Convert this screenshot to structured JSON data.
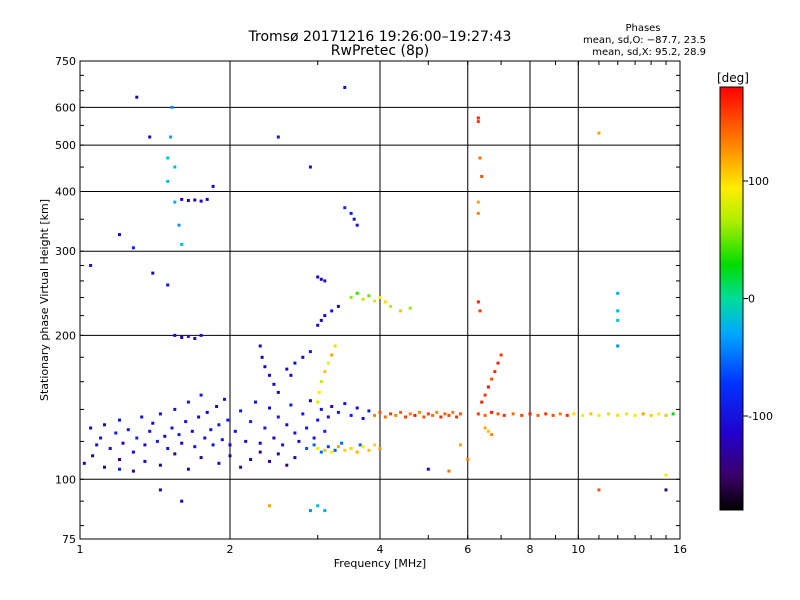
{
  "header": {
    "title_line1": "Tromsø 20171216 19:26:00–19:27:43",
    "title_line2": "RwPretec (8p)",
    "phases_title": "Phases",
    "phases_o": "mean, sd,O: −87.7, 23.5",
    "phases_x": "mean, sd,X:  95.2, 28.9"
  },
  "colorbar": {
    "unit_label": "[deg]",
    "ticks": [
      "100",
      "0",
      "-100"
    ],
    "tick_values": [
      100,
      0,
      -100
    ],
    "range": [
      -180,
      180
    ]
  },
  "chart_data": {
    "type": "scatter",
    "xlabel": "Frequency [MHz]",
    "ylabel": "Stationary phase Virtual Height [km]",
    "x_scale": "log",
    "y_scale": "log",
    "xlim": [
      1,
      16
    ],
    "ylim": [
      75,
      750
    ],
    "x_ticks": [
      1,
      2,
      4,
      6,
      8,
      10,
      16
    ],
    "x_tick_labels": [
      "1",
      "2",
      "4",
      "6",
      "8",
      "10",
      "16"
    ],
    "y_ticks": [
      75,
      100,
      200,
      300,
      400,
      500,
      600,
      750
    ],
    "y_tick_labels": [
      "75",
      "100",
      "200",
      "300",
      "400",
      "500",
      "600",
      "750"
    ],
    "grid": true,
    "points": [
      [
        1.05,
        128,
        -110
      ],
      [
        1.08,
        118,
        -100
      ],
      [
        1.1,
        122,
        -95
      ],
      [
        1.12,
        130,
        -115
      ],
      [
        1.15,
        116,
        -105
      ],
      [
        1.18,
        125,
        -90
      ],
      [
        1.2,
        133,
        -100
      ],
      [
        1.22,
        119,
        -120
      ],
      [
        1.25,
        127,
        -95
      ],
      [
        1.28,
        114,
        -110
      ],
      [
        1.3,
        122,
        -85
      ],
      [
        1.33,
        135,
        -100
      ],
      [
        1.35,
        118,
        -105
      ],
      [
        1.38,
        126,
        -95
      ],
      [
        1.4,
        131,
        -115
      ],
      [
        1.43,
        120,
        -90
      ],
      [
        1.45,
        137,
        -100
      ],
      [
        1.48,
        123,
        -110
      ],
      [
        1.5,
        116,
        -95
      ],
      [
        1.53,
        128,
        -100
      ],
      [
        1.55,
        140,
        -105
      ],
      [
        1.58,
        124,
        -90
      ],
      [
        1.6,
        119,
        -115
      ],
      [
        1.63,
        132,
        -100
      ],
      [
        1.65,
        145,
        -95
      ],
      [
        1.68,
        126,
        -110
      ],
      [
        1.7,
        117,
        -100
      ],
      [
        1.73,
        135,
        -105
      ],
      [
        1.75,
        150,
        -90
      ],
      [
        1.78,
        122,
        -100
      ],
      [
        1.8,
        138,
        -115
      ],
      [
        1.83,
        127,
        -95
      ],
      [
        1.85,
        118,
        -100
      ],
      [
        1.88,
        142,
        -110
      ],
      [
        1.9,
        130,
        -90
      ],
      [
        1.93,
        121,
        -100
      ],
      [
        1.95,
        147,
        -105
      ],
      [
        1.98,
        133,
        -95
      ],
      [
        2.0,
        118,
        -110
      ],
      [
        2.05,
        126,
        -100
      ],
      [
        2.1,
        139,
        -95
      ],
      [
        2.15,
        120,
        -105
      ],
      [
        2.2,
        132,
        -90
      ],
      [
        2.25,
        145,
        -100
      ],
      [
        2.3,
        119,
        -115
      ],
      [
        2.35,
        128,
        -95
      ],
      [
        2.4,
        141,
        -100
      ],
      [
        2.45,
        122,
        -110
      ],
      [
        2.5,
        135,
        -90
      ],
      [
        2.55,
        118,
        -100
      ],
      [
        2.6,
        130,
        -105
      ],
      [
        2.65,
        143,
        -95
      ],
      [
        2.7,
        125,
        -100
      ],
      [
        2.75,
        120,
        -110
      ],
      [
        2.8,
        137,
        -90
      ],
      [
        2.85,
        128,
        -100
      ],
      [
        2.9,
        146,
        -115
      ],
      [
        2.95,
        122,
        -95
      ],
      [
        3.0,
        133,
        -100
      ],
      [
        3.05,
        140,
        -105
      ],
      [
        3.1,
        126,
        -90
      ],
      [
        3.15,
        135,
        -100
      ],
      [
        3.2,
        142,
        -110
      ],
      [
        3.3,
        138,
        -95
      ],
      [
        3.4,
        144,
        -100
      ],
      [
        3.5,
        136,
        -90
      ],
      [
        3.6,
        141,
        -105
      ],
      [
        3.7,
        134,
        -100
      ],
      [
        3.8,
        139,
        -95
      ],
      [
        1.02,
        108,
        -130
      ],
      [
        1.06,
        112,
        -140
      ],
      [
        1.12,
        106,
        -125
      ],
      [
        1.2,
        110,
        -135
      ],
      [
        1.28,
        104,
        -145
      ],
      [
        1.35,
        109,
        -120
      ],
      [
        1.45,
        107,
        -130
      ],
      [
        1.55,
        113,
        -140
      ],
      [
        1.65,
        105,
        -125
      ],
      [
        1.75,
        111,
        -135
      ],
      [
        1.9,
        108,
        -120
      ],
      [
        2.0,
        112,
        -130
      ],
      [
        2.1,
        106,
        -140
      ],
      [
        2.2,
        110,
        -125
      ],
      [
        2.3,
        114,
        -135
      ],
      [
        2.4,
        109,
        -120
      ],
      [
        2.5,
        113,
        -130
      ],
      [
        2.6,
        107,
        -140
      ],
      [
        2.7,
        111,
        -125
      ],
      [
        2.85,
        116,
        -60
      ],
      [
        2.95,
        118,
        -55
      ],
      [
        3.05,
        114,
        -50
      ],
      [
        3.15,
        117,
        -65
      ],
      [
        3.25,
        115,
        -58
      ],
      [
        3.35,
        119,
        -52
      ],
      [
        3.5,
        116,
        -62
      ],
      [
        3.65,
        118,
        -55
      ],
      [
        3.0,
        116,
        90
      ],
      [
        3.1,
        115,
        110
      ],
      [
        3.2,
        114,
        95
      ],
      [
        3.3,
        117,
        120
      ],
      [
        3.4,
        115,
        105
      ],
      [
        3.5,
        116,
        100
      ],
      [
        3.6,
        114,
        115
      ],
      [
        3.7,
        117,
        90
      ],
      [
        3.8,
        115,
        110
      ],
      [
        3.9,
        118,
        100
      ],
      [
        4.0,
        116,
        125
      ],
      [
        3.0,
        145,
        80
      ],
      [
        3.02,
        152,
        95
      ],
      [
        3.05,
        160,
        70
      ],
      [
        3.1,
        168,
        110
      ],
      [
        3.15,
        175,
        90
      ],
      [
        3.2,
        182,
        120
      ],
      [
        3.25,
        190,
        100
      ],
      [
        3.9,
        136,
        130
      ],
      [
        4.0,
        138,
        150
      ],
      [
        4.1,
        135,
        140
      ],
      [
        4.2,
        137,
        160
      ],
      [
        4.3,
        136,
        130
      ],
      [
        4.4,
        138,
        145
      ],
      [
        4.5,
        135,
        155
      ],
      [
        4.6,
        137,
        135
      ],
      [
        4.7,
        136,
        170
      ],
      [
        4.8,
        138,
        125
      ],
      [
        4.9,
        135,
        150
      ],
      [
        5.0,
        137,
        160
      ],
      [
        5.1,
        136,
        140
      ],
      [
        5.2,
        138,
        130
      ],
      [
        5.3,
        135,
        165
      ],
      [
        5.4,
        137,
        145
      ],
      [
        5.5,
        136,
        155
      ],
      [
        5.6,
        138,
        135
      ],
      [
        5.7,
        135,
        160
      ],
      [
        5.8,
        137,
        150
      ],
      [
        6.3,
        137,
        160
      ],
      [
        6.5,
        136,
        145
      ],
      [
        6.7,
        138,
        170
      ],
      [
        6.9,
        137,
        150
      ],
      [
        7.1,
        136,
        165
      ],
      [
        7.4,
        137,
        140
      ],
      [
        7.7,
        136,
        155
      ],
      [
        8.0,
        137,
        170
      ],
      [
        8.3,
        136,
        145
      ],
      [
        8.6,
        137,
        160
      ],
      [
        8.9,
        136,
        150
      ],
      [
        9.2,
        137,
        135
      ],
      [
        9.5,
        136,
        165
      ],
      [
        9.8,
        137,
        100
      ],
      [
        10.2,
        136,
        90
      ],
      [
        10.6,
        137,
        110
      ],
      [
        11.0,
        136,
        95
      ],
      [
        11.5,
        137,
        80
      ],
      [
        12.0,
        136,
        100
      ],
      [
        12.5,
        137,
        85
      ],
      [
        13.0,
        136,
        95
      ],
      [
        13.5,
        137,
        120
      ],
      [
        14.0,
        136,
        105
      ],
      [
        14.5,
        137,
        90
      ],
      [
        15.0,
        136,
        110
      ],
      [
        15.5,
        137,
        30
      ],
      [
        6.4,
        145,
        170
      ],
      [
        6.5,
        150,
        160
      ],
      [
        6.6,
        156,
        175
      ],
      [
        6.7,
        162,
        150
      ],
      [
        6.8,
        168,
        165
      ],
      [
        6.9,
        175,
        170
      ],
      [
        7.0,
        182,
        160
      ],
      [
        6.5,
        128,
        120
      ],
      [
        6.6,
        126,
        110
      ],
      [
        6.7,
        124,
        130
      ],
      [
        1.5,
        420,
        -20
      ],
      [
        1.5,
        470,
        -10
      ],
      [
        1.52,
        520,
        -30
      ],
      [
        1.53,
        600,
        -40
      ],
      [
        1.55,
        450,
        -15
      ],
      [
        1.55,
        380,
        -25
      ],
      [
        1.58,
        340,
        -35
      ],
      [
        1.6,
        310,
        -20
      ],
      [
        1.6,
        385,
        -120
      ],
      [
        1.65,
        383,
        -110
      ],
      [
        1.7,
        384,
        -130
      ],
      [
        1.75,
        382,
        -115
      ],
      [
        1.8,
        385,
        -125
      ],
      [
        1.55,
        200,
        -110
      ],
      [
        1.6,
        198,
        -120
      ],
      [
        1.65,
        199,
        -100
      ],
      [
        1.7,
        197,
        -115
      ],
      [
        1.75,
        200,
        -105
      ],
      [
        2.3,
        190,
        -110
      ],
      [
        2.32,
        180,
        -115
      ],
      [
        2.35,
        172,
        -120
      ],
      [
        2.4,
        165,
        -110
      ],
      [
        2.45,
        158,
        -115
      ],
      [
        2.5,
        152,
        -120
      ],
      [
        2.6,
        170,
        -105
      ],
      [
        2.65,
        165,
        -110
      ],
      [
        2.7,
        175,
        -100
      ],
      [
        2.8,
        180,
        -115
      ],
      [
        2.9,
        185,
        -95
      ],
      [
        3.0,
        265,
        -110
      ],
      [
        3.05,
        262,
        -120
      ],
      [
        3.1,
        260,
        -100
      ],
      [
        3.0,
        210,
        -105
      ],
      [
        3.05,
        215,
        -110
      ],
      [
        3.1,
        220,
        -115
      ],
      [
        3.2,
        225,
        -100
      ],
      [
        3.3,
        230,
        -110
      ],
      [
        3.5,
        240,
        60
      ],
      [
        3.6,
        245,
        40
      ],
      [
        3.7,
        238,
        70
      ],
      [
        3.8,
        242,
        50
      ],
      [
        3.9,
        236,
        80
      ],
      [
        4.0,
        240,
        90
      ],
      [
        4.1,
        235,
        100
      ],
      [
        4.2,
        230,
        70
      ],
      [
        4.4,
        225,
        110
      ],
      [
        4.6,
        228,
        60
      ],
      [
        3.4,
        370,
        -80
      ],
      [
        3.5,
        360,
        -90
      ],
      [
        3.55,
        350,
        -100
      ],
      [
        3.6,
        340,
        -95
      ],
      [
        6.3,
        570,
        170
      ],
      [
        6.3,
        560,
        160
      ],
      [
        6.35,
        470,
        140
      ],
      [
        6.4,
        430,
        150
      ],
      [
        6.3,
        380,
        120
      ],
      [
        6.3,
        360,
        130
      ],
      [
        6.3,
        235,
        170
      ],
      [
        6.35,
        225,
        160
      ],
      [
        12.0,
        245,
        -30
      ],
      [
        12.0,
        225,
        -20
      ],
      [
        12.0,
        215,
        -10
      ],
      [
        12.0,
        190,
        -40
      ],
      [
        1.3,
        630,
        -120
      ],
      [
        1.38,
        520,
        -110
      ],
      [
        1.85,
        410,
        -115
      ],
      [
        2.5,
        520,
        -100
      ],
      [
        2.9,
        450,
        -105
      ],
      [
        3.4,
        660,
        -100
      ],
      [
        1.2,
        105,
        -90
      ],
      [
        1.45,
        95,
        -110
      ],
      [
        1.6,
        90,
        -120
      ],
      [
        2.4,
        88,
        120
      ],
      [
        2.9,
        86,
        -40
      ],
      [
        3.0,
        88,
        -20
      ],
      [
        3.1,
        86,
        -30
      ],
      [
        1.05,
        280,
        -100
      ],
      [
        1.2,
        325,
        -110
      ],
      [
        1.28,
        305,
        -90
      ],
      [
        1.4,
        270,
        -120
      ],
      [
        1.5,
        255,
        -100
      ],
      [
        11.0,
        530,
        120
      ],
      [
        11.0,
        95,
        150
      ],
      [
        15.0,
        95,
        -140
      ],
      [
        15.0,
        102,
        90
      ],
      [
        5.0,
        105,
        -110
      ],
      [
        5.5,
        104,
        140
      ],
      [
        6.0,
        110,
        130
      ],
      [
        5.8,
        118,
        120
      ]
    ]
  }
}
